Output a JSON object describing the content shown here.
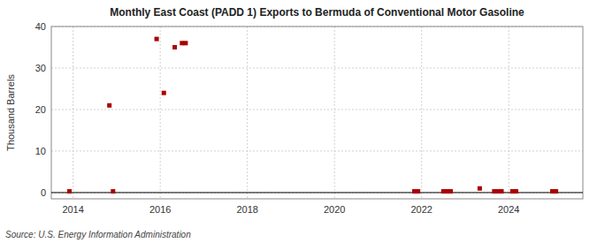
{
  "chart_data": {
    "type": "scatter",
    "title": "Monthly East Coast (PADD 1) Exports to Bermuda of Conventional Motor Gasoline",
    "ylabel": "Thousand Barrels",
    "annotations": [
      "Source: U.S. Energy Information Administration"
    ],
    "x": [
      2013.917,
      2014.833,
      2014.917,
      2015.917,
      2016.083,
      2016.333,
      2016.5,
      2016.583,
      2021.833,
      2021.917,
      2022.5,
      2022.583,
      2022.667,
      2023.333,
      2023.667,
      2023.75,
      2023.833,
      2024.083,
      2024.167,
      2025.0,
      2025.083
    ],
    "values": [
      0.3,
      21.0,
      0.3,
      37.0,
      24.0,
      35.0,
      36.0,
      36.0,
      0.3,
      0.3,
      0.3,
      0.3,
      0.3,
      1.0,
      0.3,
      0.3,
      0.3,
      0.3,
      0.3,
      0.3,
      0.3
    ],
    "color": "#aa0000",
    "marker": "square",
    "xlim": [
      2013.5,
      2025.7
    ],
    "xticks": [
      2014,
      2016,
      2018,
      2020,
      2022,
      2024
    ],
    "ylim": [
      -1.5,
      40
    ],
    "yticks": [
      0,
      10,
      20,
      30,
      40
    ],
    "grid": true
  }
}
